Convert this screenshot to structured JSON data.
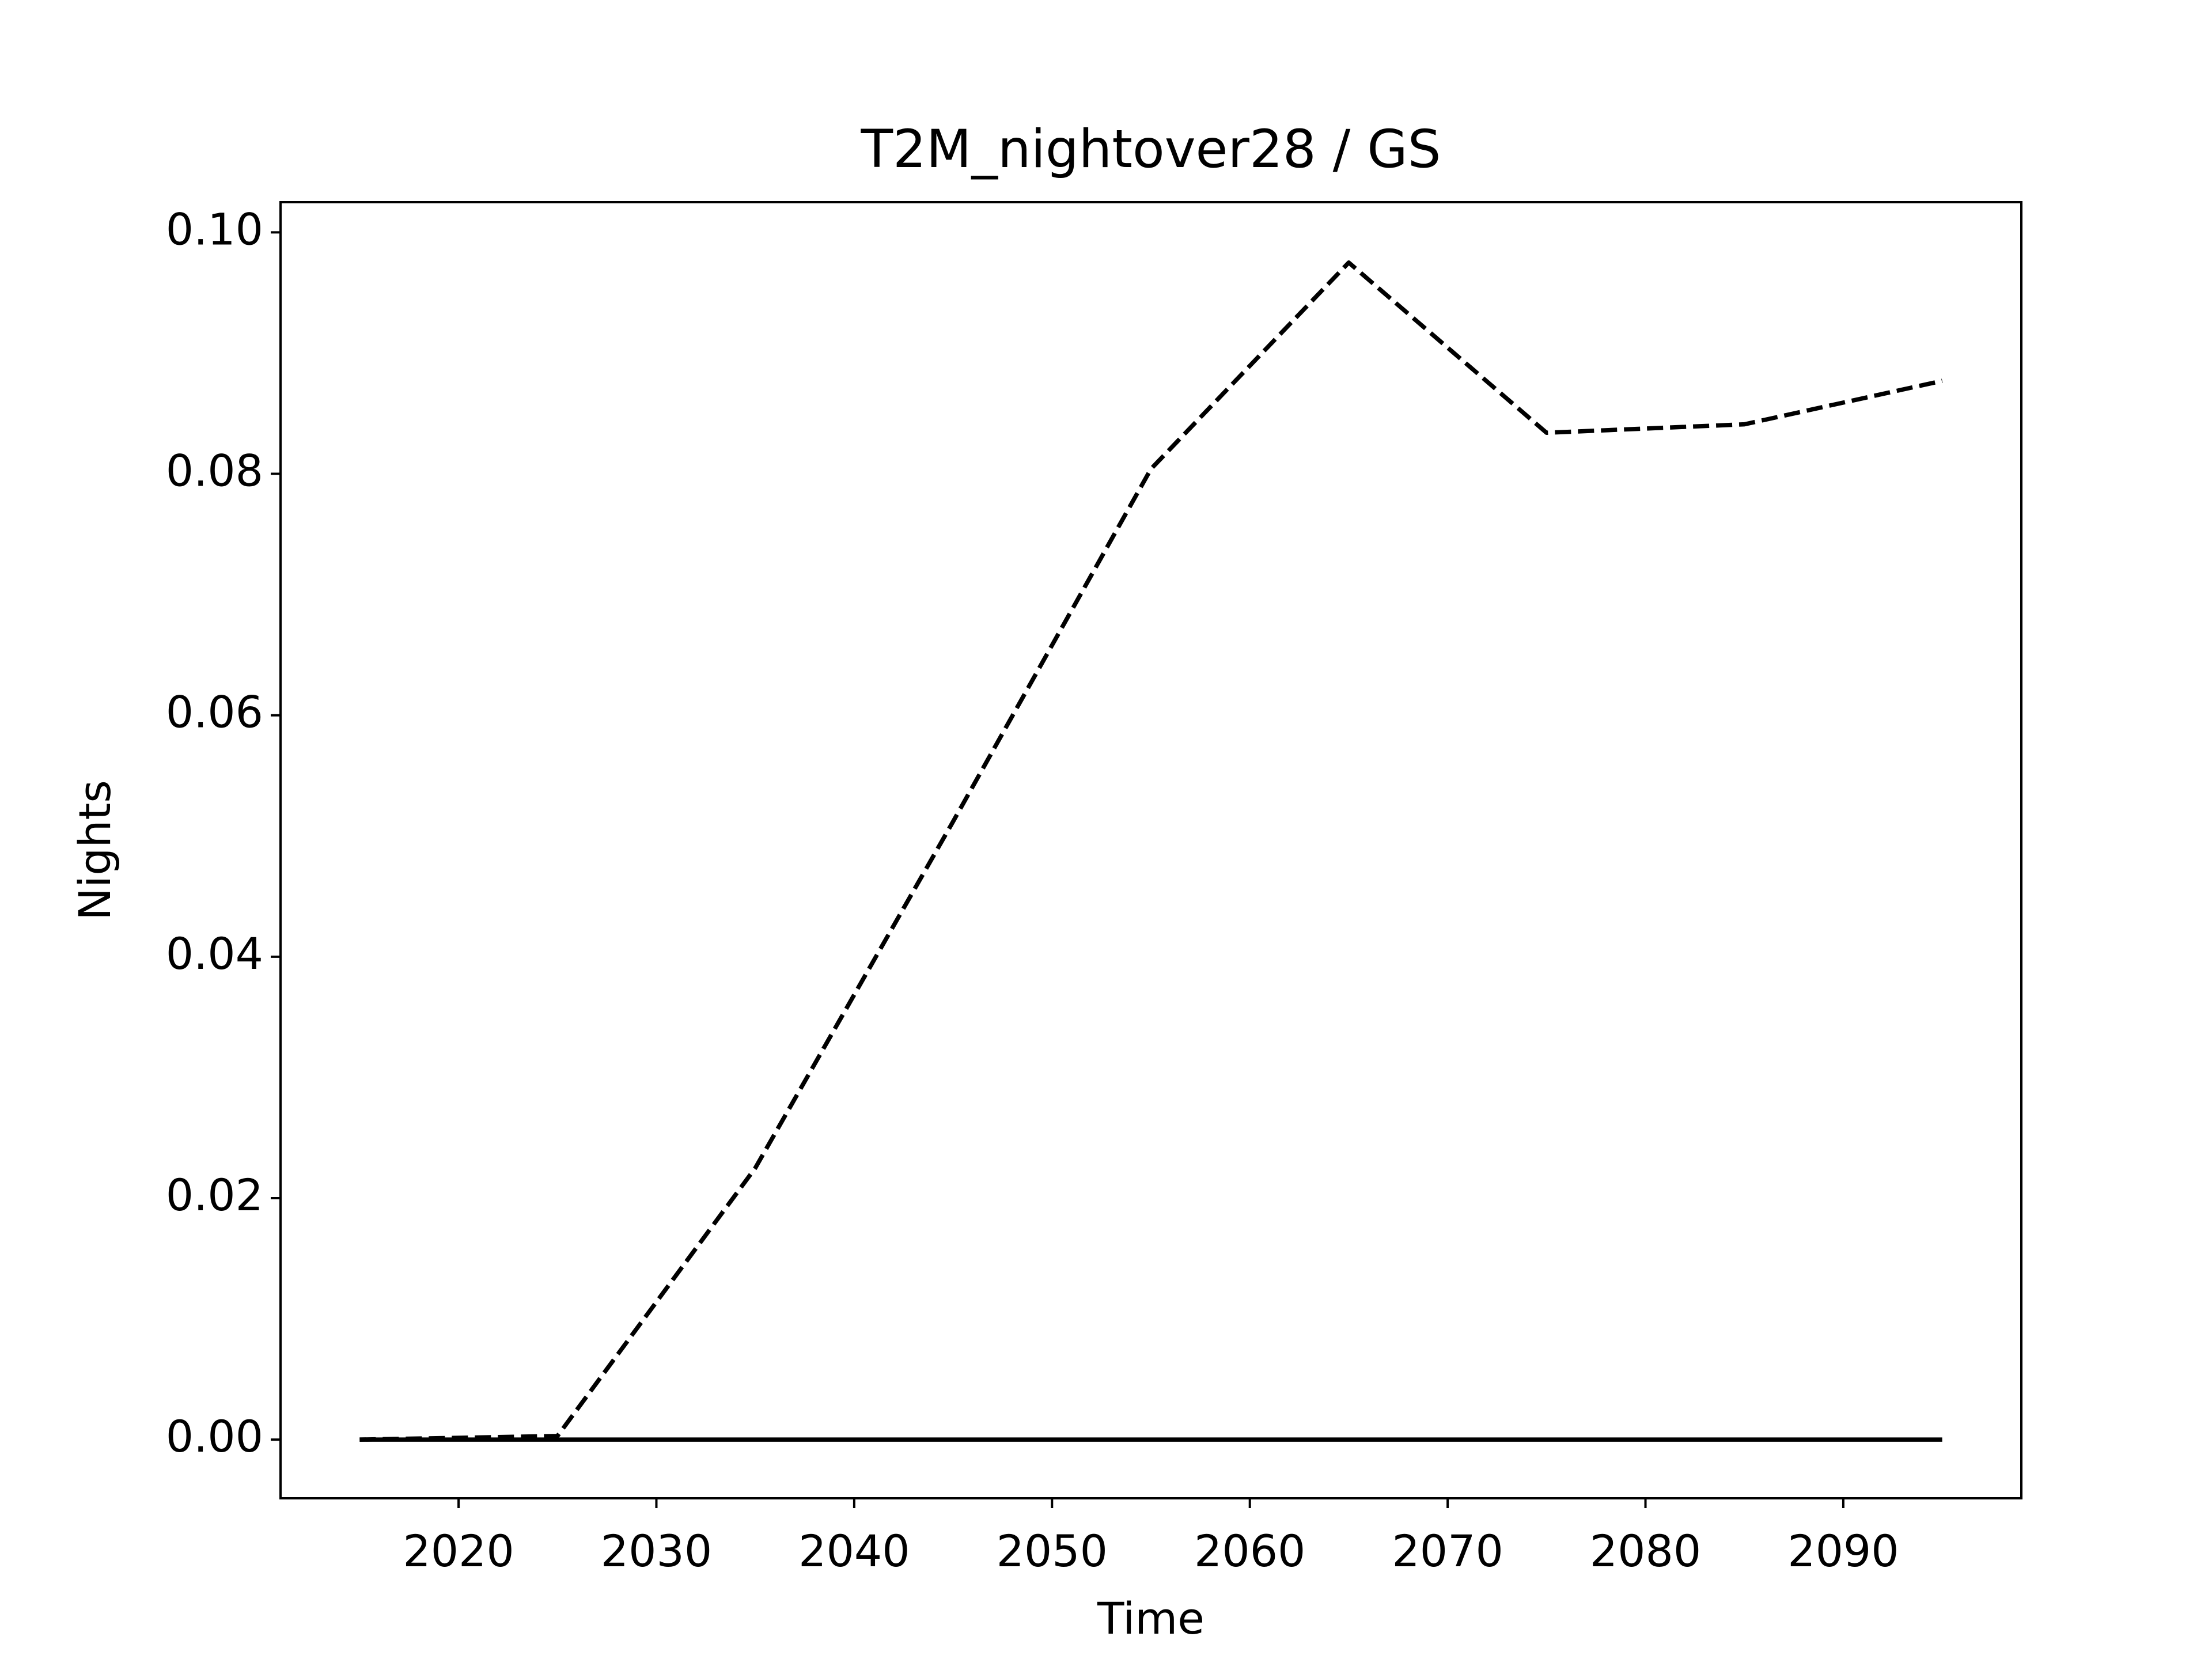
{
  "chart_data": {
    "type": "line",
    "title": "T2M_nightover28 / GS",
    "x_label": "Time",
    "y_label": "Nights",
    "x": [
      2015,
      2025,
      2035,
      2045,
      2055,
      2065,
      2075,
      2085,
      2095
    ],
    "series": [
      {
        "color": "#000000",
        "style": "dashed",
        "values": [
          0,
          0.0003,
          0.0225,
          0.0512,
          0.0804,
          0.0975,
          0.0834,
          0.0841,
          0.0877
        ]
      },
      {
        "color": "#000000",
        "style": "solid",
        "values": [
          0,
          0,
          0,
          0,
          0,
          0,
          0,
          0,
          0
        ]
      }
    ],
    "xlim": [
      2011,
      2099
    ],
    "xticks": [
      2020,
      2030,
      2040,
      2050,
      2060,
      2070,
      2080,
      2090
    ],
    "ylim": [
      -0.00486,
      0.1025
    ],
    "yticks": [
      {
        "value": 0,
        "label": "0.00"
      },
      {
        "value": 0.02,
        "label": "0.02"
      },
      {
        "value": 0.04,
        "label": "0.04"
      },
      {
        "value": 0.06,
        "label": "0.06"
      },
      {
        "value": 0.08,
        "label": "0.08"
      },
      {
        "value": 0.1,
        "label": "0.10"
      }
    ],
    "grid": false
  }
}
